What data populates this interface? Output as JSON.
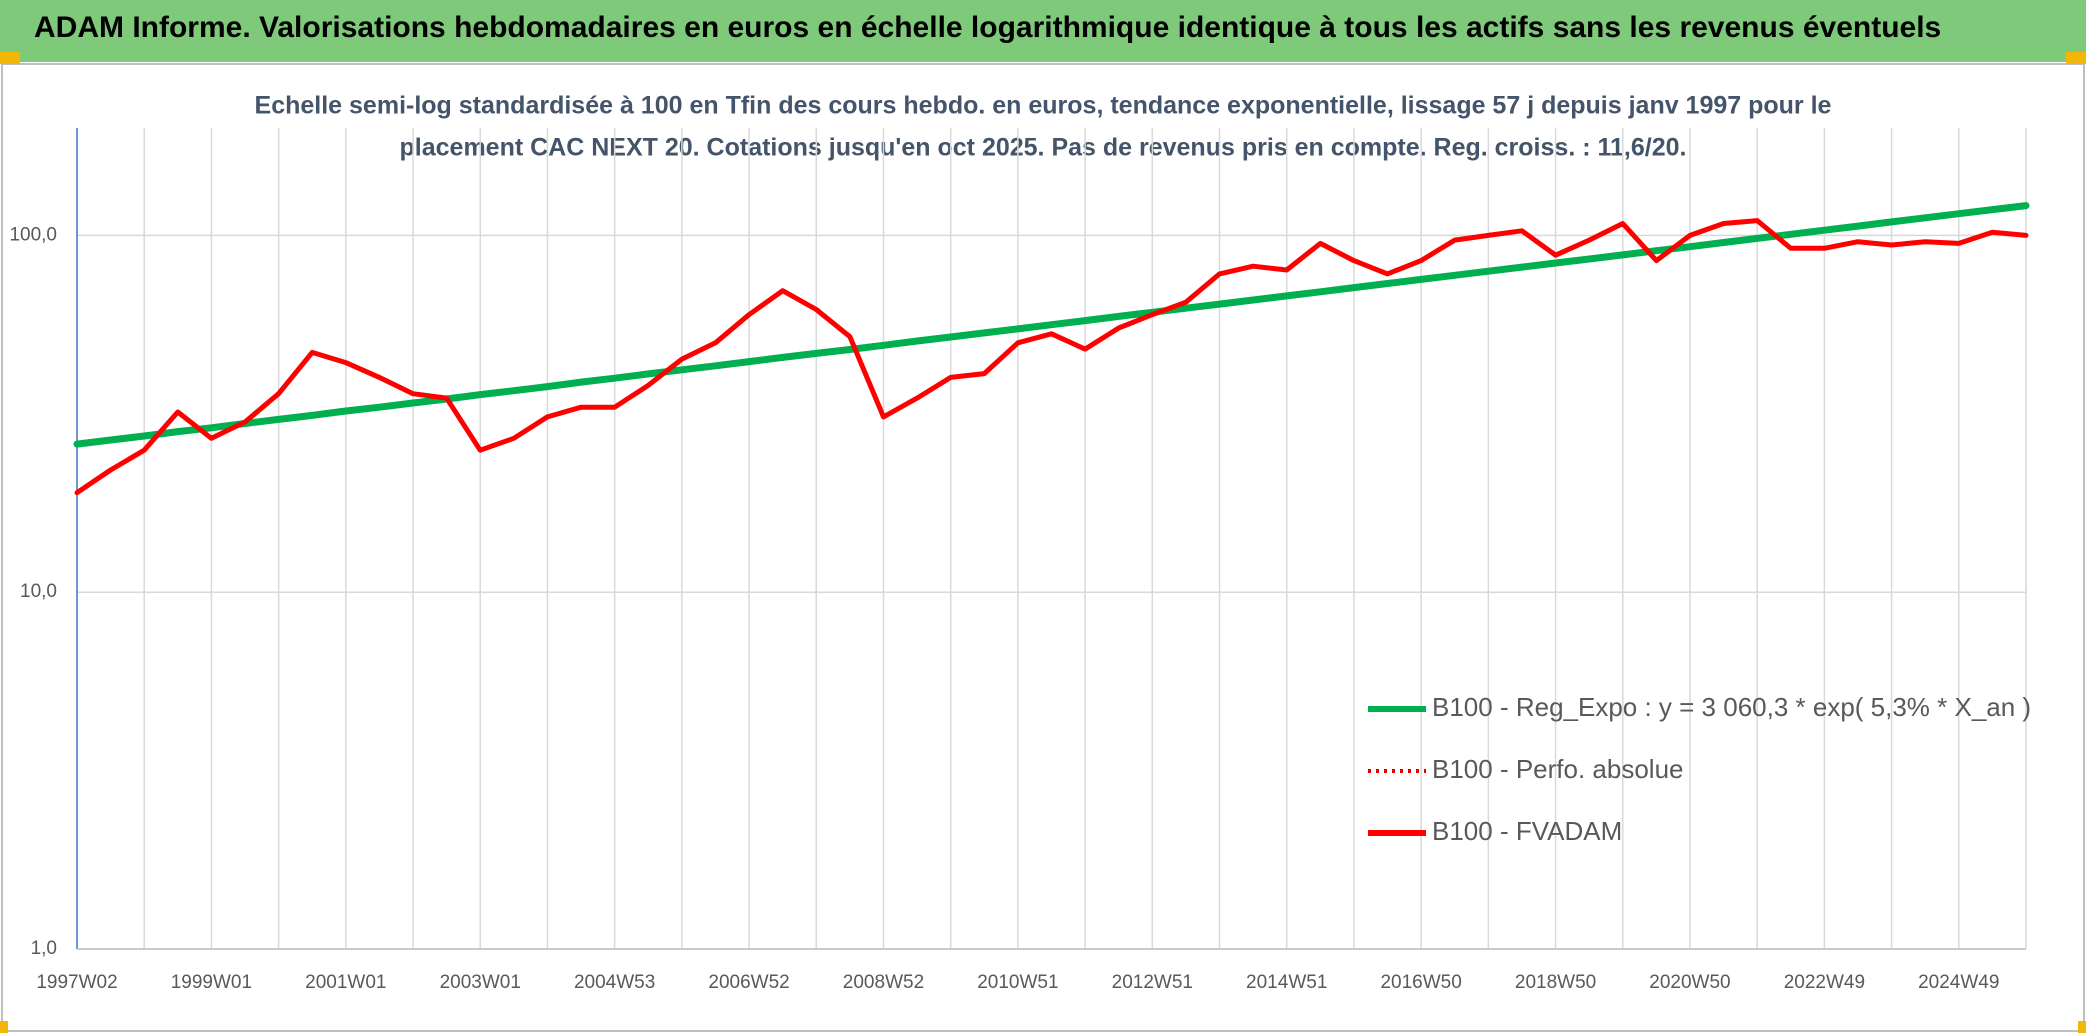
{
  "chart_data": {
    "type": "line",
    "title": "ADAM Informe. Valorisations hebdomadaires en euros en échelle logarithmique identique à tous les actifs sans les revenus éventuels",
    "subtitle": [
      "Echelle semi-log standardisée à 100 en Tfin des cours hebdo. en euros, tendance exponentielle, lissage 57 j depuis janv 1997 pour le",
      "placement CAC NEXT 20. Cotations jusqu'en oct 2025. Pas de revenus pris en compte. Reg. croiss. : 11,6/20."
    ],
    "categories": [
      "1997W02",
      null,
      null,
      null,
      "1999W01",
      null,
      null,
      null,
      "2001W01",
      null,
      null,
      null,
      "2003W01",
      null,
      null,
      null,
      "2004W53",
      null,
      null,
      null,
      "2006W52",
      null,
      null,
      null,
      "2008W52",
      null,
      null,
      null,
      "2010W51",
      null,
      null,
      null,
      "2012W51",
      null,
      null,
      null,
      "2014W51",
      null,
      null,
      null,
      "2016W50",
      null,
      null,
      null,
      "2018W50",
      null,
      null,
      null,
      "2020W50",
      null,
      null,
      null,
      "2022W49",
      null,
      null,
      null,
      "2024W49",
      null,
      null
    ],
    "series": [
      {
        "name": "B100 - Reg_Expo : y = 3 060,3 * exp( 5,3% *  X_an )",
        "color": "#00b050",
        "style": "solid",
        "values": [
          26.0,
          26.7,
          27.4,
          28.2,
          28.9,
          29.7,
          30.5,
          31.3,
          32.2,
          33.0,
          33.9,
          34.8,
          35.8,
          36.7,
          37.7,
          38.8,
          39.8,
          40.9,
          42.0,
          43.1,
          44.3,
          45.5,
          46.7,
          47.9,
          49.2,
          50.6,
          51.9,
          53.3,
          54.7,
          56.2,
          57.7,
          59.3,
          60.9,
          62.5,
          64.2,
          65.9,
          67.7,
          69.5,
          71.4,
          73.3,
          75.3,
          77.3,
          79.4,
          81.5,
          83.7,
          85.9,
          88.2,
          90.6,
          93.0,
          95.5,
          98.1,
          100.7,
          103.4,
          106.2,
          109.1,
          112.0,
          115.0,
          118.1,
          121.2
        ]
      },
      {
        "name": "B100 - Perfo. absolue",
        "color": "#e00000",
        "style": "dotted",
        "values": [
          19,
          22,
          25,
          32,
          27,
          30,
          36,
          47,
          44,
          40,
          36,
          35,
          25,
          27,
          31,
          33,
          33,
          38,
          45,
          50,
          60,
          70,
          62,
          52,
          31,
          35,
          40,
          41,
          50,
          53,
          48,
          55,
          60,
          65,
          78,
          82,
          80,
          95,
          85,
          78,
          85,
          97,
          100,
          103,
          88,
          97,
          108,
          85,
          100,
          108,
          110,
          92,
          92,
          96,
          94,
          96,
          95,
          102,
          100
        ]
      },
      {
        "name": "B100 - FVADAM",
        "color": "#ff0000",
        "style": "solid",
        "values": [
          19,
          22,
          25,
          32,
          27,
          30,
          36,
          47,
          44,
          40,
          36,
          35,
          25,
          27,
          31,
          33,
          33,
          38,
          45,
          50,
          60,
          70,
          62,
          52,
          31,
          35,
          40,
          41,
          50,
          53,
          48,
          55,
          60,
          65,
          78,
          82,
          80,
          95,
          85,
          78,
          85,
          97,
          100,
          103,
          88,
          97,
          108,
          85,
          100,
          108,
          110,
          92,
          92,
          96,
          94,
          96,
          95,
          102,
          100
        ]
      }
    ],
    "ylim": [
      1,
      200
    ],
    "log_scale": true,
    "yticks": [
      {
        "value": 1,
        "label": "1,0"
      },
      {
        "value": 10,
        "label": "10,0"
      },
      {
        "value": 100,
        "label": "100,0"
      }
    ],
    "grid": true,
    "legend": "right"
  }
}
